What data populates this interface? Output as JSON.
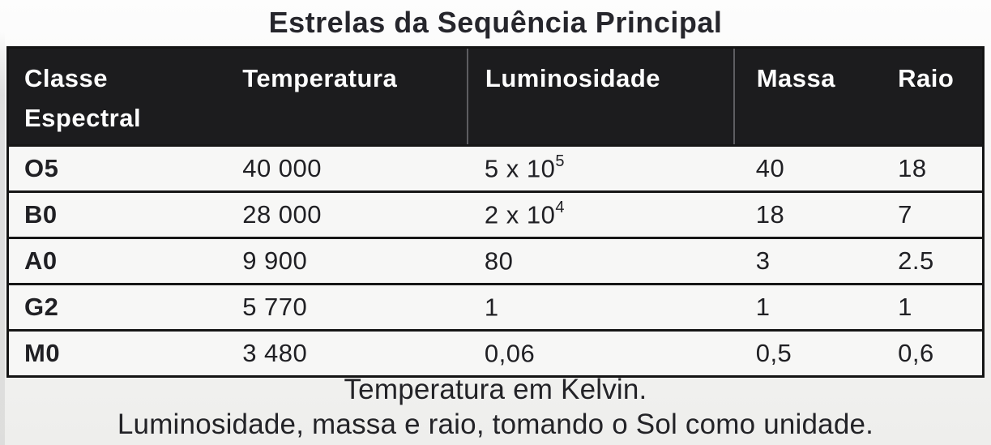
{
  "title": "Estrelas da Sequência Principal",
  "table": {
    "header": {
      "classe_line1": "Classe",
      "classe_line2": "Espectral",
      "temperatura": "Temperatura",
      "luminosidade": "Luminosidade",
      "massa": "Massa",
      "raio": "Raio"
    },
    "rows": [
      {
        "classe": "O5",
        "temperatura": "40 000",
        "lum_base": "5 x 10",
        "lum_exp": "5",
        "massa": "40",
        "raio": "18"
      },
      {
        "classe": "B0",
        "temperatura": "28 000",
        "lum_base": "2 x 10",
        "lum_exp": "4",
        "massa": "18",
        "raio": "7"
      },
      {
        "classe": "A0",
        "temperatura": "9 900",
        "lum_base": "80",
        "lum_exp": "",
        "massa": "3",
        "raio": "2.5"
      },
      {
        "classe": "G2",
        "temperatura": "5 770",
        "lum_base": "1",
        "lum_exp": "",
        "massa": "1",
        "raio": "1"
      },
      {
        "classe": "M0",
        "temperatura": "3 480",
        "lum_base": "0,06",
        "lum_exp": "",
        "massa": "0,5",
        "raio": "0,6"
      }
    ]
  },
  "captions": {
    "line1": "Temperatura em Kelvin.",
    "line2": "Luminosidade, massa e raio, tomando o Sol como unidade."
  },
  "colors": {
    "header_bg": "#1c1c1e",
    "header_text": "#fdfdfd",
    "border": "#141414",
    "body_text": "#202024",
    "page_bg": "#f4f4f3"
  }
}
